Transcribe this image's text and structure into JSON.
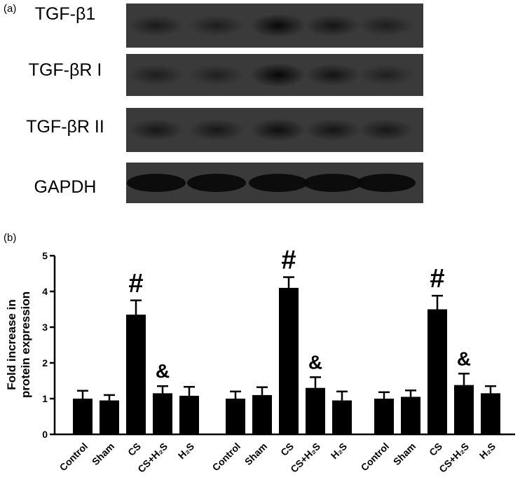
{
  "panel_a_label": "(a)",
  "panel_b_label": "(b)",
  "blots": [
    {
      "label": "TGF-β1",
      "intensity": [
        0.55,
        0.5,
        0.85,
        0.65,
        0.5
      ]
    },
    {
      "label": "TGF-βR I",
      "intensity": [
        0.5,
        0.45,
        0.9,
        0.65,
        0.45
      ]
    },
    {
      "label": "TGF-βR II",
      "intensity": [
        0.6,
        0.6,
        0.75,
        0.65,
        0.6
      ]
    },
    {
      "label": "GAPDH",
      "intensity": [
        0.95,
        0.95,
        0.95,
        0.95,
        0.95
      ]
    }
  ],
  "chart_data": {
    "type": "bar",
    "ylabel": "Fold increase in protein expression",
    "ylabel_lines": [
      "Fold increase in",
      "protein expression"
    ],
    "ylim": [
      0,
      5
    ],
    "yticks": [
      "0",
      "1",
      "2",
      "3",
      "4",
      "5"
    ],
    "categories": [
      "Control",
      "Sham",
      "CS",
      "CS+H₂S",
      "H₂S"
    ],
    "groups": [
      {
        "values": [
          1.0,
          0.95,
          3.35,
          1.15,
          1.08
        ],
        "errors": [
          0.22,
          0.15,
          0.4,
          0.2,
          0.25
        ],
        "marks": [
          "",
          "",
          "#",
          "&",
          ""
        ]
      },
      {
        "values": [
          1.0,
          1.1,
          4.1,
          1.3,
          0.95
        ],
        "errors": [
          0.2,
          0.22,
          0.3,
          0.3,
          0.25
        ],
        "marks": [
          "",
          "",
          "#",
          "&",
          ""
        ]
      },
      {
        "values": [
          1.0,
          1.05,
          3.5,
          1.38,
          1.15
        ],
        "errors": [
          0.18,
          0.18,
          0.38,
          0.32,
          0.2
        ],
        "marks": [
          "",
          "",
          "#",
          "&",
          ""
        ]
      }
    ],
    "bar_color": "#000000"
  }
}
